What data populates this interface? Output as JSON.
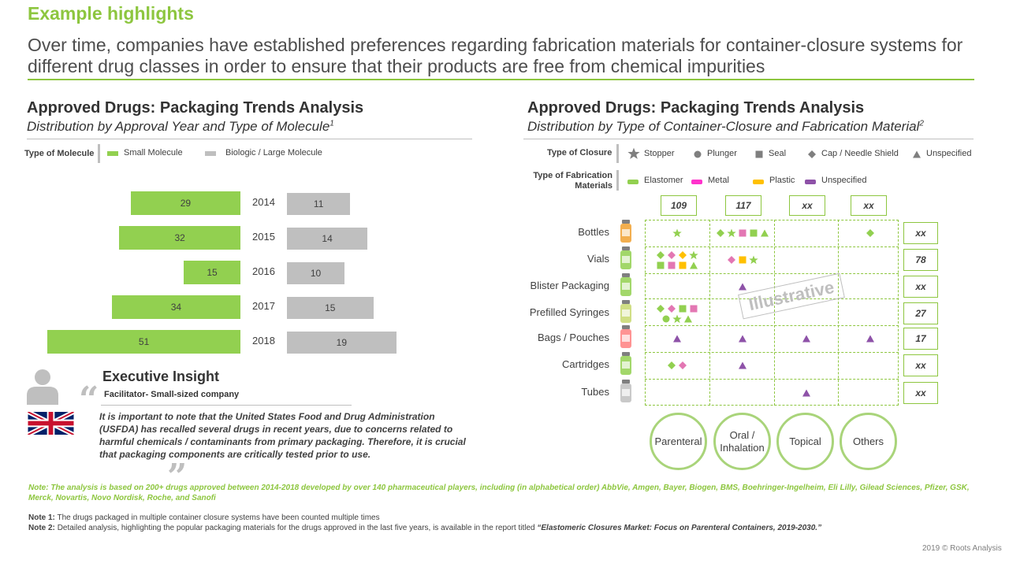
{
  "page": {
    "title": "Example highlights",
    "headline": "Over time, companies have established preferences regarding fabrication materials for container-closure systems for different drug classes in order to ensure that their products are free from chemical impurities",
    "copyright": "2019 © Roots Analysis"
  },
  "left_panel": {
    "title": "Approved Drugs: Packaging Trends Analysis",
    "subtitle": "Distribution by Approval Year and Type of Molecule",
    "subtitle_sup": "1",
    "legend_label": "Type of Molecule",
    "legend_items": [
      "Small Molecule",
      "Biologic / Large Molecule"
    ]
  },
  "chart_data": [
    {
      "type": "bar",
      "orientation": "horizontal-butterfly",
      "title": "Approved Drugs: Packaging Trends Analysis",
      "subtitle": "Distribution by Approval Year and Type of Molecule",
      "categories": [
        "2014",
        "2015",
        "2016",
        "2017",
        "2018"
      ],
      "series": [
        {
          "name": "Small Molecule",
          "color": "#92d050",
          "values": [
            29,
            32,
            15,
            34,
            51
          ]
        },
        {
          "name": "Biologic / Large Molecule",
          "color": "#bfbfbf",
          "values": [
            11,
            14,
            10,
            15,
            19
          ]
        }
      ],
      "legend": "top-left",
      "grid": false
    },
    {
      "type": "table",
      "title": "Approved Drugs: Packaging Trends Analysis",
      "subtitle": "Distribution by Type of Container-Closure and Fabrication Material",
      "columns": [
        "Parenteral",
        "Oral / Inhalation",
        "Topical",
        "Others"
      ],
      "column_totals": [
        "109",
        "117",
        "xx",
        "xx"
      ],
      "rows": [
        "Bottles",
        "Vials",
        "Blister Packaging",
        "Prefilled Syringes",
        "Bags / Pouches",
        "Cartridges",
        "Tubes"
      ],
      "row_totals": [
        "xx",
        "78",
        "xx",
        "27",
        "17",
        "xx",
        "xx"
      ],
      "cells": [
        [
          [
            {
              "shape": "star",
              "color": "#92d050"
            }
          ],
          [
            {
              "shape": "diamond",
              "color": "#92d050"
            },
            {
              "shape": "star",
              "color": "#92d050"
            },
            {
              "shape": "square",
              "color": "#e377b3"
            },
            {
              "shape": "square",
              "color": "#92d050"
            },
            {
              "shape": "triangle",
              "color": "#92d050"
            }
          ],
          [],
          [
            {
              "shape": "diamond",
              "color": "#92d050"
            }
          ]
        ],
        [
          [
            {
              "shape": "diamond",
              "color": "#92d050"
            },
            {
              "shape": "diamond",
              "color": "#e377b3"
            },
            {
              "shape": "diamond",
              "color": "#ffc000"
            },
            {
              "shape": "star",
              "color": "#92d050"
            },
            {
              "shape": "square",
              "color": "#92d050"
            },
            {
              "shape": "square",
              "color": "#e377b3"
            },
            {
              "shape": "square",
              "color": "#ffc000"
            },
            {
              "shape": "triangle",
              "color": "#92d050"
            }
          ],
          [
            {
              "shape": "diamond",
              "color": "#e377b3"
            },
            {
              "shape": "square",
              "color": "#ffc000"
            },
            {
              "shape": "star",
              "color": "#92d050"
            }
          ],
          [],
          []
        ],
        [
          [],
          [
            {
              "shape": "triangle",
              "color": "#8e52a8"
            }
          ],
          [],
          []
        ],
        [
          [
            {
              "shape": "diamond",
              "color": "#92d050"
            },
            {
              "shape": "diamond",
              "color": "#e377b3"
            },
            {
              "shape": "square",
              "color": "#92d050"
            },
            {
              "shape": "square",
              "color": "#e377b3"
            },
            {
              "shape": "circle",
              "color": "#92d050"
            },
            {
              "shape": "star",
              "color": "#92d050"
            },
            {
              "shape": "triangle",
              "color": "#92d050"
            }
          ],
          [],
          [],
          []
        ],
        [
          [
            {
              "shape": "triangle",
              "color": "#8e52a8"
            }
          ],
          [
            {
              "shape": "triangle",
              "color": "#8e52a8"
            }
          ],
          [
            {
              "shape": "triangle",
              "color": "#8e52a8"
            }
          ],
          [
            {
              "shape": "triangle",
              "color": "#8e52a8"
            }
          ]
        ],
        [
          [
            {
              "shape": "diamond",
              "color": "#92d050"
            },
            {
              "shape": "diamond",
              "color": "#e377b3"
            }
          ],
          [
            {
              "shape": "triangle",
              "color": "#8e52a8"
            }
          ],
          [],
          []
        ],
        [
          [],
          [],
          [
            {
              "shape": "triangle",
              "color": "#8e52a8"
            }
          ],
          []
        ]
      ],
      "watermark": "Illustrative"
    }
  ],
  "right_panel": {
    "title": "Approved Drugs: Packaging Trends Analysis",
    "subtitle": "Distribution by Type of Container-Closure and Fabrication Material",
    "subtitle_sup": "2",
    "closure_label": "Type of Closure",
    "closure_items": [
      "Stopper",
      "Plunger",
      "Seal",
      "Cap / Needle Shield",
      "Unspecified"
    ],
    "material_label_1": "Type of Fabrication",
    "material_label_2": "Materials",
    "material_items": [
      {
        "label": "Elastomer",
        "color": "#92d050"
      },
      {
        "label": "Metal",
        "color": "#ff33cc"
      },
      {
        "label": "Plastic",
        "color": "#ffc000"
      },
      {
        "label": "Unspecified",
        "color": "#8e52a8"
      }
    ]
  },
  "insight": {
    "title": "Executive Insight",
    "source": "Facilitator- Small-sized company",
    "quote": "It is important to note that the United States Food and Drug Administration (USFDA) has recalled several drugs in recent years, due to concerns related to harmful chemicals / contaminants from primary packaging. Therefore, it is crucial that packaging components are critically tested prior to use."
  },
  "notes": {
    "main": "Note: The analysis is based on 200+ drugs approved between 2014-2018 developed by over 140 pharmaceutical players, including (in alphabetical order) AbbVie, Amgen, Bayer, Biogen, BMS, Boehringer-Ingelheim, Eli Lilly, Gilead Sciences, Pfizer, GSK, Merck, Novartis, Novo Nordisk, Roche, and Sanofi",
    "note1_label": "Note 1:",
    "note1": "The drugs packaged in multiple  container closure systems have been counted multiple  times",
    "note2_label": "Note 2:",
    "note2": "Detailed analysis, highlighting the popular packaging materials  for the drugs approved in the last five years, is available in the report titled",
    "note2_report": "“Elastomeric Closures Market: Focus on Parenteral Containers, 2019-2030.”"
  }
}
